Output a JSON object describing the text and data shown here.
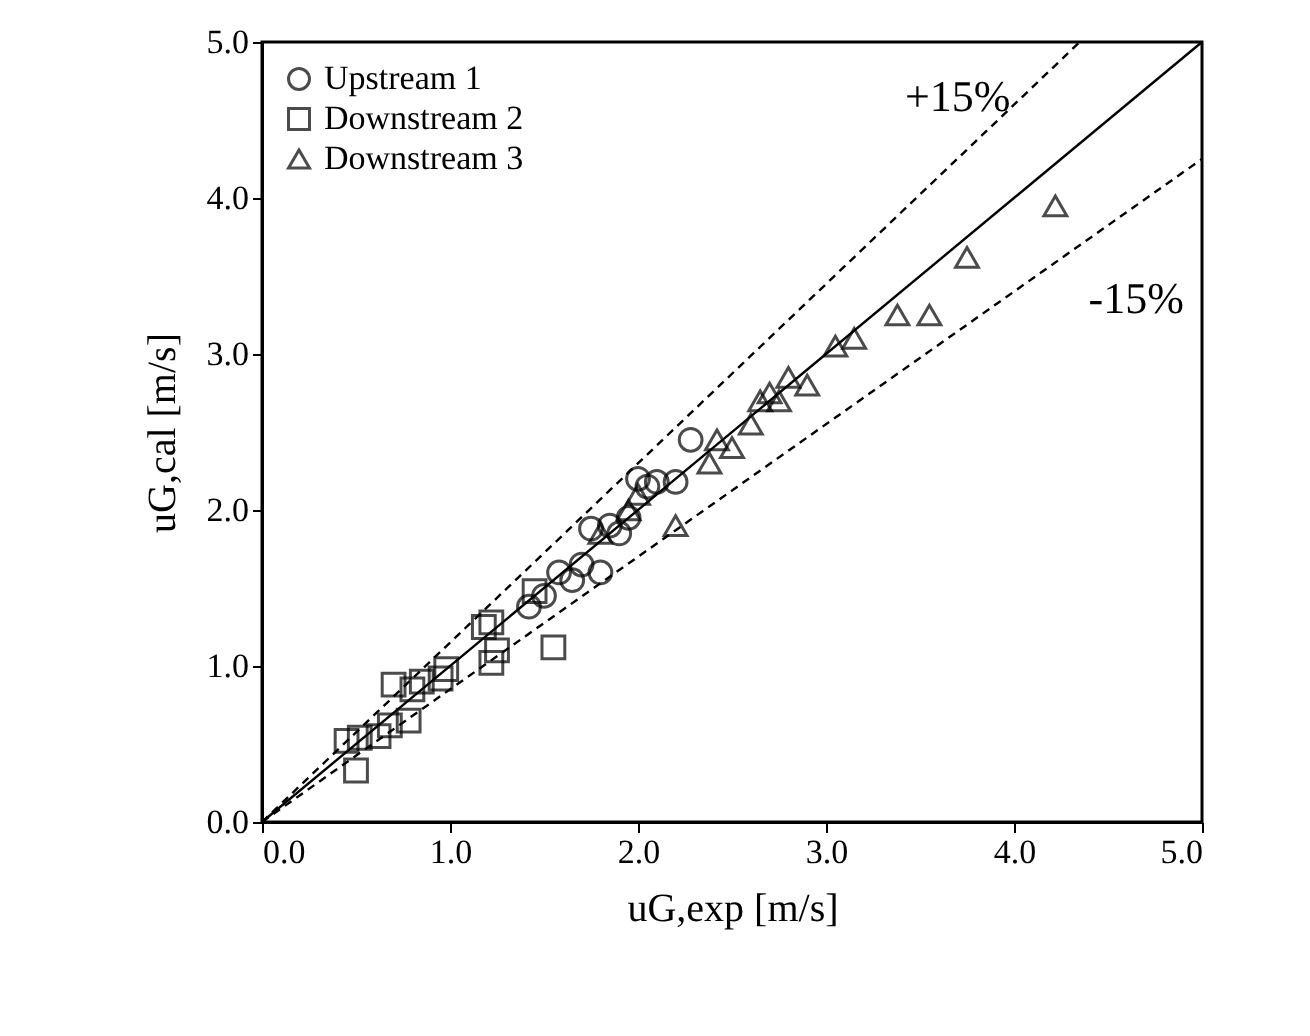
{
  "chart_data": {
    "type": "scatter",
    "xlabel": "uG,exp [m/s]",
    "ylabel": "uG,cal [m/s]",
    "xlim": [
      0.0,
      5.0
    ],
    "ylim": [
      0.0,
      5.0
    ],
    "xticks": [
      {
        "value": 0,
        "label": "0.0"
      },
      {
        "value": 1,
        "label": "1.0"
      },
      {
        "value": 2,
        "label": "2.0"
      },
      {
        "value": 3,
        "label": "3.0"
      },
      {
        "value": 4,
        "label": "4.0"
      },
      {
        "value": 5,
        "label": "5.0"
      }
    ],
    "yticks": [
      {
        "value": 0,
        "label": "0.0"
      },
      {
        "value": 1,
        "label": "1.0"
      },
      {
        "value": 2,
        "label": "2.0"
      },
      {
        "value": 3,
        "label": "3.0"
      },
      {
        "value": 4,
        "label": "4.0"
      },
      {
        "value": 5,
        "label": "5.0"
      }
    ],
    "grid": false,
    "legend": "top left",
    "series": [
      {
        "name": "Upstream 1",
        "color": "#000000",
        "marker": "circle",
        "x": [
          1.42,
          1.5,
          1.58,
          1.65,
          1.7,
          1.75,
          1.8,
          1.85,
          1.9,
          1.95,
          2.0,
          2.05,
          2.1,
          2.2,
          2.28
        ],
        "values": [
          1.38,
          1.45,
          1.6,
          1.55,
          1.65,
          1.88,
          1.6,
          1.9,
          1.85,
          1.95,
          2.2,
          2.15,
          2.18,
          2.18,
          2.45
        ]
      },
      {
        "name": "Downstream 2",
        "color": "#000000",
        "marker": "square",
        "x": [
          0.45,
          0.5,
          0.52,
          0.62,
          0.68,
          0.7,
          0.78,
          0.8,
          0.85,
          0.95,
          0.98,
          1.18,
          1.22,
          1.22,
          1.25,
          1.45,
          1.55
        ],
        "values": [
          0.52,
          0.33,
          0.54,
          0.55,
          0.62,
          0.88,
          0.65,
          0.85,
          0.9,
          0.92,
          0.98,
          1.25,
          1.28,
          1.02,
          1.1,
          1.48,
          1.12
        ]
      },
      {
        "name": "Downstream 3",
        "color": "#000000",
        "marker": "triangle",
        "x": [
          1.8,
          1.95,
          2.0,
          2.2,
          2.38,
          2.42,
          2.5,
          2.6,
          2.65,
          2.7,
          2.75,
          2.8,
          2.9,
          3.05,
          3.15,
          3.38,
          3.55,
          3.75,
          4.22
        ],
        "values": [
          1.85,
          2.0,
          2.1,
          1.9,
          2.3,
          2.45,
          2.4,
          2.55,
          2.7,
          2.75,
          2.7,
          2.85,
          2.8,
          3.05,
          3.1,
          3.25,
          3.25,
          3.62,
          3.95
        ]
      },
      {
        "type": "line",
        "color": "#000000",
        "line_style": "solid",
        "x": [
          0.0,
          5.0
        ],
        "values": [
          0.0,
          5.0
        ]
      },
      {
        "type": "line",
        "color": "#000000",
        "line_style": "dashed",
        "x": [
          0.0,
          4.35
        ],
        "values": [
          0.0,
          5.0
        ]
      },
      {
        "type": "line",
        "color": "#000000",
        "line_style": "dashed",
        "x": [
          0.0,
          5.0
        ],
        "values": [
          0.0,
          4.25
        ]
      }
    ],
    "annotations": [
      "+15%",
      "-15%"
    ]
  }
}
